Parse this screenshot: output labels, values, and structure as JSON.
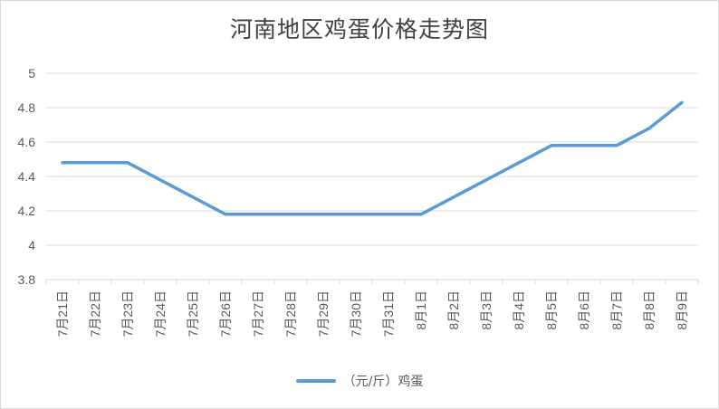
{
  "chart_data": {
    "type": "line",
    "title": "河南地区鸡蛋价格走势图",
    "categories": [
      "7月21日",
      "7月22日",
      "7月23日",
      "7月24日",
      "7月25日",
      "7月26日",
      "7月27日",
      "7月28日",
      "7月29日",
      "7月30日",
      "7月31日",
      "8月1日",
      "8月2日",
      "8月3日",
      "8月4日",
      "8月5日",
      "8月6日",
      "8月7日",
      "8月8日",
      "8月9日"
    ],
    "series": [
      {
        "name": "（元/斤）鸡蛋",
        "color": "#5b9bd5",
        "values": [
          4.48,
          4.48,
          4.48,
          4.38,
          4.28,
          4.18,
          4.18,
          4.18,
          4.18,
          4.18,
          4.18,
          4.18,
          4.28,
          4.38,
          4.48,
          4.58,
          4.58,
          4.58,
          4.68,
          4.83
        ]
      }
    ],
    "yticks": [
      "3.8",
      "4",
      "4.2",
      "4.4",
      "4.6",
      "4.8",
      "5"
    ],
    "ylim": [
      3.8,
      5
    ],
    "grid": true,
    "legend_position": "bottom"
  }
}
